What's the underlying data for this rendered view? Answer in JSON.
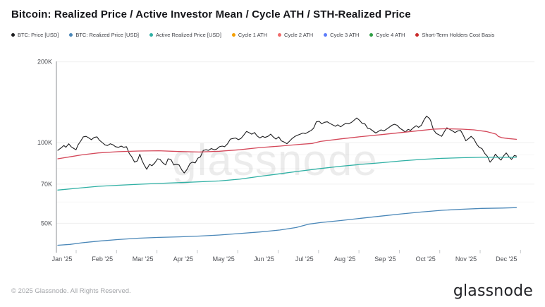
{
  "header": {
    "title": "Bitcoin: Realized Price / Active Investor Mean / Cycle ATH / STH-Realized Price"
  },
  "legend": {
    "items": [
      {
        "label": "BTC: Price [USD]",
        "color": "#1d1d1f"
      },
      {
        "label": "BTC: Realized Price [USD]",
        "color": "#4a87b8"
      },
      {
        "label": "Active Realized Price [USD]",
        "color": "#2fb0a4"
      },
      {
        "label": "Cycle 1 ATH",
        "color": "#f59f00"
      },
      {
        "label": "Cycle 2 ATH",
        "color": "#f06a6a"
      },
      {
        "label": "Cycle 3 ATH",
        "color": "#5c7cfa"
      },
      {
        "label": "Cycle 4 ATH",
        "color": "#2f9e44"
      },
      {
        "label": "Short-Term Holders Cost Basis",
        "color": "#c92a2a"
      }
    ]
  },
  "watermark": "glassnode",
  "footer": {
    "copyright": "© 2025 Glassnode. All Rights Reserved.",
    "logo_text": "glassnode"
  },
  "chart_data": {
    "type": "line",
    "title": "Bitcoin: Realized Price / Active Investor Mean / Cycle ATH / STH-Realized Price",
    "y_scale": "log",
    "y_unit": "USD, values in thousands (K)",
    "ylim": [
      38,
      210
    ],
    "grid": "horizontal-faint",
    "legend_position": "top",
    "x_tick_labels": [
      "Jan '25",
      "Feb '25",
      "Mar '25",
      "Apr '25",
      "May '25",
      "Jun '25",
      "Jul '25",
      "Aug '25",
      "Sep '25",
      "Oct '25",
      "Nov '25",
      "Dec '25"
    ],
    "y_ticks": [
      {
        "value": 200,
        "label": "200K"
      },
      {
        "value": 100,
        "label": "100K"
      },
      {
        "value": 70,
        "label": "70K"
      },
      {
        "value": 50,
        "label": "50K"
      }
    ],
    "y_minor_gridlines": [
      90,
      80,
      60
    ],
    "x_domain_months": [
      0,
      11.35
    ],
    "series": [
      {
        "name": "BTC: Price [USD]",
        "color": "#1d1d1f",
        "width": 1.1,
        "points": [
          [
            0,
            93.5
          ],
          [
            0.08,
            95.5
          ],
          [
            0.15,
            97.5
          ],
          [
            0.2,
            96
          ],
          [
            0.27,
            99
          ],
          [
            0.33,
            96.5
          ],
          [
            0.4,
            95
          ],
          [
            0.45,
            94
          ],
          [
            0.5,
            98
          ],
          [
            0.57,
            101.5
          ],
          [
            0.63,
            105
          ],
          [
            0.7,
            105.5
          ],
          [
            0.77,
            104
          ],
          [
            0.83,
            102.5
          ],
          [
            0.9,
            104.5
          ],
          [
            0.97,
            105
          ],
          [
            1.03,
            102
          ],
          [
            1.1,
            100
          ],
          [
            1.17,
            98
          ],
          [
            1.23,
            97.5
          ],
          [
            1.3,
            99
          ],
          [
            1.37,
            98
          ],
          [
            1.43,
            96.5
          ],
          [
            1.5,
            96
          ],
          [
            1.57,
            97
          ],
          [
            1.63,
            96
          ],
          [
            1.7,
            96.5
          ],
          [
            1.77,
            91
          ],
          [
            1.83,
            88.5
          ],
          [
            1.9,
            84.5
          ],
          [
            1.97,
            85.5
          ],
          [
            2.03,
            90.5
          ],
          [
            2.08,
            86
          ],
          [
            2.13,
            83
          ],
          [
            2.2,
            79.5
          ],
          [
            2.27,
            83
          ],
          [
            2.33,
            82
          ],
          [
            2.4,
            84
          ],
          [
            2.47,
            87
          ],
          [
            2.53,
            86.5
          ],
          [
            2.6,
            84
          ],
          [
            2.67,
            82.5
          ],
          [
            2.73,
            87
          ],
          [
            2.8,
            86.5
          ],
          [
            2.87,
            82.5
          ],
          [
            2.93,
            83
          ],
          [
            3.0,
            82.5
          ],
          [
            3.07,
            79
          ],
          [
            3.13,
            77
          ],
          [
            3.2,
            79.5
          ],
          [
            3.27,
            83.5
          ],
          [
            3.33,
            84.5
          ],
          [
            3.4,
            84
          ],
          [
            3.47,
            87.5
          ],
          [
            3.53,
            88.5
          ],
          [
            3.6,
            93.5
          ],
          [
            3.67,
            94
          ],
          [
            3.73,
            93.5
          ],
          [
            3.8,
            95
          ],
          [
            3.87,
            94
          ],
          [
            3.93,
            94.5
          ],
          [
            4.0,
            96.5
          ],
          [
            4.07,
            97
          ],
          [
            4.13,
            96.5
          ],
          [
            4.2,
            99
          ],
          [
            4.27,
            103
          ],
          [
            4.33,
            103.5
          ],
          [
            4.4,
            104
          ],
          [
            4.47,
            102.5
          ],
          [
            4.53,
            103.5
          ],
          [
            4.6,
            106.5
          ],
          [
            4.67,
            110
          ],
          [
            4.73,
            109
          ],
          [
            4.8,
            107.5
          ],
          [
            4.87,
            109
          ],
          [
            4.93,
            106
          ],
          [
            5.0,
            104
          ],
          [
            5.07,
            105.5
          ],
          [
            5.13,
            104.5
          ],
          [
            5.2,
            105.5
          ],
          [
            5.27,
            107.5
          ],
          [
            5.33,
            105
          ],
          [
            5.4,
            103
          ],
          [
            5.47,
            105
          ],
          [
            5.53,
            101.5
          ],
          [
            5.6,
            100.5
          ],
          [
            5.67,
            99
          ],
          [
            5.73,
            101
          ],
          [
            5.8,
            103.5
          ],
          [
            5.87,
            105.5
          ],
          [
            5.93,
            106.5
          ],
          [
            6.0,
            107.5
          ],
          [
            6.07,
            108.5
          ],
          [
            6.13,
            108
          ],
          [
            6.2,
            109.5
          ],
          [
            6.27,
            111
          ],
          [
            6.33,
            113
          ],
          [
            6.4,
            119.5
          ],
          [
            6.47,
            120
          ],
          [
            6.53,
            117.5
          ],
          [
            6.6,
            119
          ],
          [
            6.67,
            119.5
          ],
          [
            6.73,
            118
          ],
          [
            6.8,
            116.5
          ],
          [
            6.87,
            115
          ],
          [
            6.93,
            116.5
          ],
          [
            7.0,
            114.5
          ],
          [
            7.07,
            116.5
          ],
          [
            7.13,
            118
          ],
          [
            7.2,
            117.5
          ],
          [
            7.27,
            119
          ],
          [
            7.33,
            121
          ],
          [
            7.4,
            123.5
          ],
          [
            7.47,
            121
          ],
          [
            7.53,
            118
          ],
          [
            7.6,
            117.5
          ],
          [
            7.67,
            113
          ],
          [
            7.73,
            112.5
          ],
          [
            7.8,
            110.5
          ],
          [
            7.87,
            108.5
          ],
          [
            7.93,
            110
          ],
          [
            8.0,
            111.5
          ],
          [
            8.07,
            110.5
          ],
          [
            8.13,
            112
          ],
          [
            8.2,
            114
          ],
          [
            8.27,
            116
          ],
          [
            8.33,
            117
          ],
          [
            8.4,
            116
          ],
          [
            8.47,
            113
          ],
          [
            8.53,
            111.5
          ],
          [
            8.6,
            109.5
          ],
          [
            8.67,
            112
          ],
          [
            8.73,
            111
          ],
          [
            8.8,
            113.5
          ],
          [
            8.87,
            115.5
          ],
          [
            8.93,
            114
          ],
          [
            9.0,
            116
          ],
          [
            9.07,
            122
          ],
          [
            9.13,
            125.5
          ],
          [
            9.17,
            124
          ],
          [
            9.2,
            123
          ],
          [
            9.23,
            120.5
          ],
          [
            9.27,
            115
          ],
          [
            9.3,
            111.5
          ],
          [
            9.37,
            108
          ],
          [
            9.43,
            107
          ],
          [
            9.5,
            105.5
          ],
          [
            9.57,
            110
          ],
          [
            9.63,
            113.5
          ],
          [
            9.7,
            112
          ],
          [
            9.77,
            110.5
          ],
          [
            9.83,
            109
          ],
          [
            9.9,
            110.5
          ],
          [
            9.97,
            111
          ],
          [
            10.03,
            107
          ],
          [
            10.1,
            101.5
          ],
          [
            10.17,
            103.5
          ],
          [
            10.23,
            105.5
          ],
          [
            10.3,
            103
          ],
          [
            10.37,
            98.5
          ],
          [
            10.43,
            96
          ],
          [
            10.5,
            95
          ],
          [
            10.57,
            91
          ],
          [
            10.63,
            89
          ],
          [
            10.7,
            84.5
          ],
          [
            10.77,
            87
          ],
          [
            10.83,
            90.5
          ],
          [
            10.9,
            88
          ],
          [
            10.97,
            86
          ],
          [
            11.03,
            89
          ],
          [
            11.1,
            91.5
          ],
          [
            11.17,
            88.5
          ],
          [
            11.23,
            86.5
          ],
          [
            11.3,
            89.5
          ],
          [
            11.35,
            89
          ]
        ]
      },
      {
        "name": "Short-Term Holders Cost Basis",
        "color": "#d4485a",
        "width": 1.3,
        "points": [
          [
            0,
            87
          ],
          [
            0.3,
            88.5
          ],
          [
            0.6,
            90
          ],
          [
            1,
            91.5
          ],
          [
            1.5,
            92.5
          ],
          [
            2,
            93
          ],
          [
            2.5,
            93.2
          ],
          [
            3,
            92.6
          ],
          [
            3.5,
            92.2
          ],
          [
            4,
            92.8
          ],
          [
            4.5,
            94
          ],
          [
            5,
            95.8
          ],
          [
            5.5,
            97
          ],
          [
            6,
            98.5
          ],
          [
            6.3,
            99.2
          ],
          [
            6.5,
            101
          ],
          [
            7,
            103.2
          ],
          [
            7.5,
            105.2
          ],
          [
            8,
            107
          ],
          [
            8.5,
            109
          ],
          [
            9,
            111
          ],
          [
            9.3,
            112.2
          ],
          [
            9.6,
            112.6
          ],
          [
            10,
            112.2
          ],
          [
            10.3,
            111.5
          ],
          [
            10.6,
            110
          ],
          [
            10.75,
            108.5
          ],
          [
            10.85,
            107.5
          ],
          [
            10.9,
            105.5
          ],
          [
            11,
            104.2
          ],
          [
            11.15,
            103.5
          ],
          [
            11.35,
            102.8
          ]
        ]
      },
      {
        "name": "Active Realized Price [USD]",
        "color": "#2fb0a4",
        "width": 1.3,
        "points": [
          [
            0,
            66.5
          ],
          [
            0.5,
            67.6
          ],
          [
            1,
            68.7
          ],
          [
            1.5,
            69.3
          ],
          [
            2,
            69.9
          ],
          [
            2.5,
            70.4
          ],
          [
            3,
            70.9
          ],
          [
            3.5,
            71.4
          ],
          [
            4,
            71.9
          ],
          [
            4.5,
            73
          ],
          [
            5,
            74.8
          ],
          [
            5.5,
            76.5
          ],
          [
            6,
            78.3
          ],
          [
            6.5,
            80
          ],
          [
            7,
            81.6
          ],
          [
            7.5,
            82.9
          ],
          [
            8,
            84.1
          ],
          [
            8.5,
            85.4
          ],
          [
            9,
            86.5
          ],
          [
            9.5,
            87.3
          ],
          [
            10,
            87.8
          ],
          [
            10.5,
            88.1
          ],
          [
            11,
            88.1
          ],
          [
            11.35,
            88.1
          ]
        ]
      },
      {
        "name": "BTC: Realized Price [USD]",
        "color": "#4a87b8",
        "width": 1.3,
        "points": [
          [
            0,
            41.4
          ],
          [
            0.3,
            41.7
          ],
          [
            0.6,
            42.3
          ],
          [
            1,
            42.9
          ],
          [
            1.5,
            43.5
          ],
          [
            2,
            44
          ],
          [
            2.5,
            44.3
          ],
          [
            3,
            44.5
          ],
          [
            3.5,
            44.8
          ],
          [
            4,
            45.2
          ],
          [
            4.5,
            45.8
          ],
          [
            5,
            46.4
          ],
          [
            5.5,
            47.2
          ],
          [
            5.9,
            48.2
          ],
          [
            6.2,
            49.6
          ],
          [
            6.5,
            50.3
          ],
          [
            7,
            51.2
          ],
          [
            7.5,
            52.2
          ],
          [
            8,
            53.2
          ],
          [
            8.5,
            54.2
          ],
          [
            9,
            55.1
          ],
          [
            9.5,
            55.9
          ],
          [
            10,
            56.4
          ],
          [
            10.5,
            56.8
          ],
          [
            11,
            57
          ],
          [
            11.35,
            57.2
          ]
        ]
      }
    ]
  }
}
